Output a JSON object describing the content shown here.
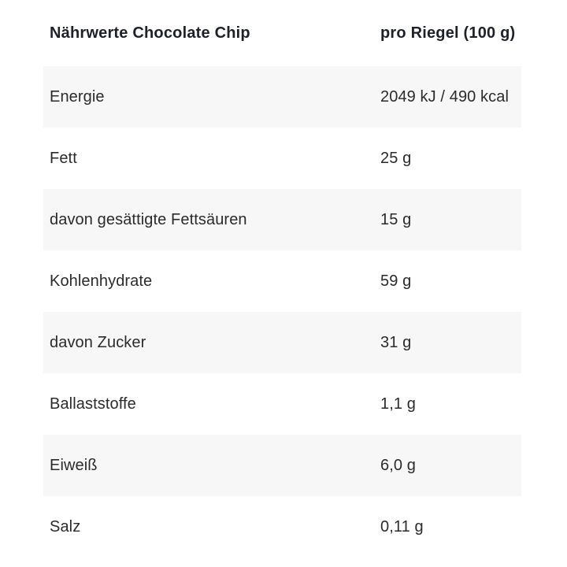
{
  "table": {
    "header": {
      "label": "Nährwerte Chocolate Chip",
      "value": "pro Riegel (100 g)"
    },
    "rows": [
      {
        "label": "Energie",
        "value": "2049 kJ / 490 kcal"
      },
      {
        "label": "Fett",
        "value": "25 g"
      },
      {
        "label": "davon gesättigte Fettsäuren",
        "value": "15 g"
      },
      {
        "label": "Kohlenhydrate",
        "value": "59 g"
      },
      {
        "label": "davon Zucker",
        "value": "31 g"
      },
      {
        "label": "Ballaststoffe",
        "value": "1,1 g"
      },
      {
        "label": "Eiweiß",
        "value": "6,0 g"
      },
      {
        "label": "Salz",
        "value": "0,11 g"
      }
    ]
  },
  "colors": {
    "background": "#ffffff",
    "stripe": "#f7f7f7",
    "header_text": "#1e2228",
    "row_text": "#2b2b2b"
  }
}
